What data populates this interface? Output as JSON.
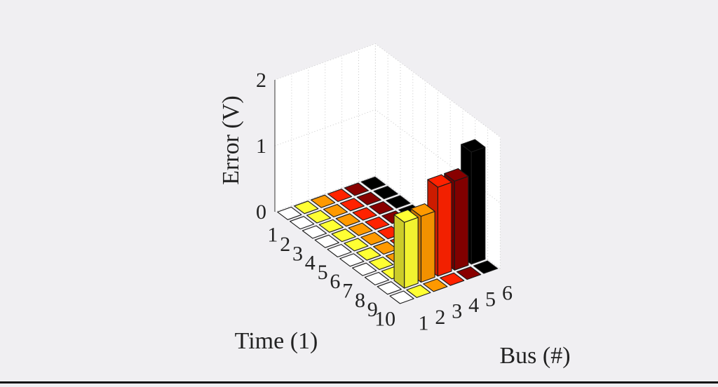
{
  "chart_data": {
    "type": "bar3d",
    "title": "",
    "zlabel": "Error (V)",
    "xlabel": "Time (1)",
    "ylabel": "Bus (#)",
    "time_ticks": [
      "1",
      "2",
      "3",
      "4",
      "5",
      "6",
      "7",
      "8",
      "9",
      "10"
    ],
    "bus_ticks": [
      "1",
      "2",
      "3",
      "4",
      "5",
      "6"
    ],
    "z_ticks": [
      "0",
      "1",
      "2"
    ],
    "zlim": [
      0,
      2
    ],
    "grid": true,
    "bus_colors": [
      "#ffffff",
      "#ffff33",
      "#ff9900",
      "#ff2200",
      "#880000",
      "#000000"
    ],
    "values": [
      [
        0.0,
        0.0,
        0.0,
        0.0,
        0.0,
        0.0
      ],
      [
        0.0,
        0.0,
        0.0,
        0.0,
        0.0,
        0.0
      ],
      [
        0.0,
        0.0,
        0.0,
        0.0,
        0.0,
        0.0
      ],
      [
        0.0,
        0.0,
        0.0,
        0.0,
        0.0,
        0.0
      ],
      [
        0.0,
        0.0,
        0.0,
        0.0,
        0.0,
        0.0
      ],
      [
        0.0,
        0.0,
        0.0,
        0.0,
        0.0,
        0.0
      ],
      [
        0.0,
        0.0,
        0.0,
        0.0,
        0.0,
        0.0
      ],
      [
        0.0,
        0.0,
        0.0,
        0.0,
        0.0,
        0.0
      ],
      [
        0.0,
        1.0,
        1.0,
        1.35,
        1.35,
        1.7
      ],
      [
        0.0,
        0.0,
        0.0,
        0.0,
        0.0,
        0.0
      ]
    ]
  }
}
